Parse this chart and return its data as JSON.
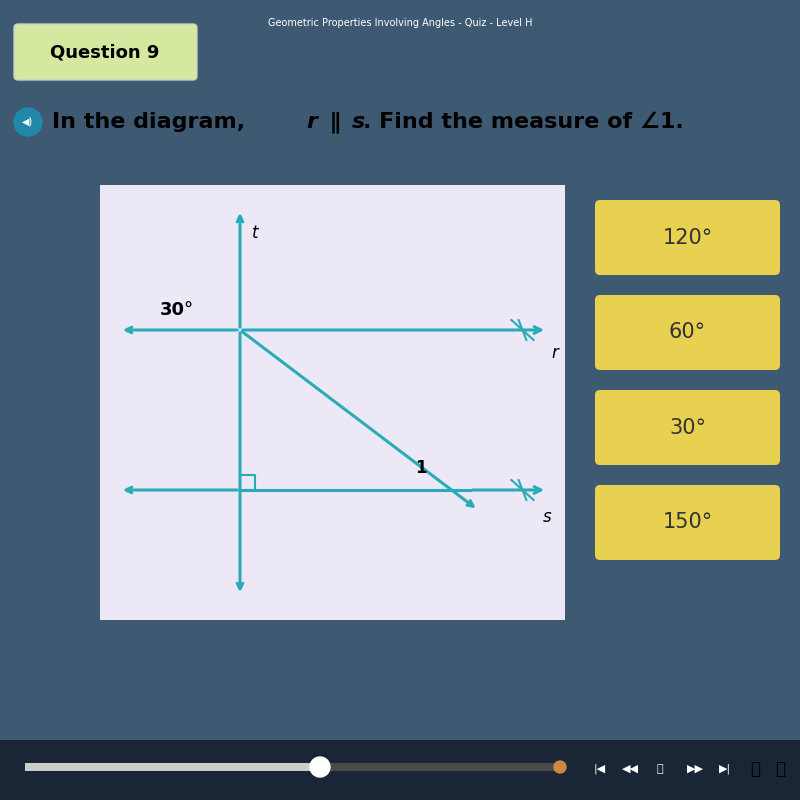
{
  "bg_color": "#3d5a72",
  "title_text": "Geometric Properties Involving Angles - Quiz - Level H",
  "question_label": "Question 9",
  "question_full": "In the diagram, r ∥ s. Find the measure of ∠1.",
  "diagram_bg": "#ece8f5",
  "line_color": "#2aacb8",
  "answer_choices": [
    "120°",
    "60°",
    "30°",
    "150°"
  ],
  "answer_bg": "#e8d050",
  "answer_text_color": "#333333",
  "angle_30_label": "30°",
  "angle_1_label": "1",
  "line_t_label": "t",
  "line_r_label": "r",
  "line_s_label": "s",
  "media_bar_color": "#1a2535"
}
